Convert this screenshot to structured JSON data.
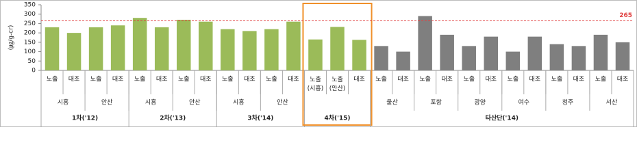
{
  "chart_data": {
    "type": "bar",
    "y_label": "(㎍/g-cr)",
    "ylim": [
      0,
      350
    ],
    "yticks": [
      0,
      50,
      100,
      150,
      200,
      250,
      300,
      350
    ],
    "grid": false,
    "reference_line": {
      "value": 265,
      "label": "265",
      "color": "#e04040"
    },
    "groups": [
      {
        "name": "1차('12)",
        "color": "#9bbb59",
        "sites": [
          {
            "name": "시흥",
            "categories": [
              "노출",
              "대조"
            ],
            "values": [
              230,
              200
            ]
          },
          {
            "name": "안산",
            "categories": [
              "노출",
              "대조"
            ],
            "values": [
              230,
              240
            ]
          }
        ]
      },
      {
        "name": "2차('13)",
        "color": "#9bbb59",
        "sites": [
          {
            "name": "시흥",
            "categories": [
              "노출",
              "대조"
            ],
            "values": [
              280,
              230
            ]
          },
          {
            "name": "안산",
            "categories": [
              "노출",
              "대조"
            ],
            "values": [
              270,
              260
            ]
          }
        ]
      },
      {
        "name": "3차('14)",
        "color": "#9bbb59",
        "sites": [
          {
            "name": "시흥",
            "categories": [
              "노출",
              "대조"
            ],
            "values": [
              220,
              210
            ]
          },
          {
            "name": "안산",
            "categories": [
              "노출",
              "대조"
            ],
            "values": [
              220,
              260
            ]
          }
        ]
      },
      {
        "name": "4차('15)",
        "color": "#9bbb59",
        "sites": [
          {
            "name": null,
            "categories": [
              "노출\n(시흥)",
              "노출\n(안산)",
              "대조"
            ],
            "values": [
              165,
              232,
              163
            ]
          }
        ]
      },
      {
        "name": "타산단('14)",
        "color": "#7f7f7f",
        "sites": [
          {
            "name": "울산",
            "categories": [
              "노출",
              "대조"
            ],
            "values": [
              130,
              100
            ]
          },
          {
            "name": "포항",
            "categories": [
              "노출",
              "대조"
            ],
            "values": [
              290,
              190
            ]
          },
          {
            "name": "광양",
            "categories": [
              "노출",
              "대조"
            ],
            "values": [
              130,
              180
            ]
          },
          {
            "name": "여수",
            "categories": [
              "노출",
              "대조"
            ],
            "values": [
              100,
              180
            ]
          },
          {
            "name": "청주",
            "categories": [
              "노출",
              "대조"
            ],
            "values": [
              140,
              130
            ]
          },
          {
            "name": "서산",
            "categories": [
              "노출",
              "대조"
            ],
            "values": [
              190,
              150
            ]
          }
        ]
      }
    ]
  }
}
